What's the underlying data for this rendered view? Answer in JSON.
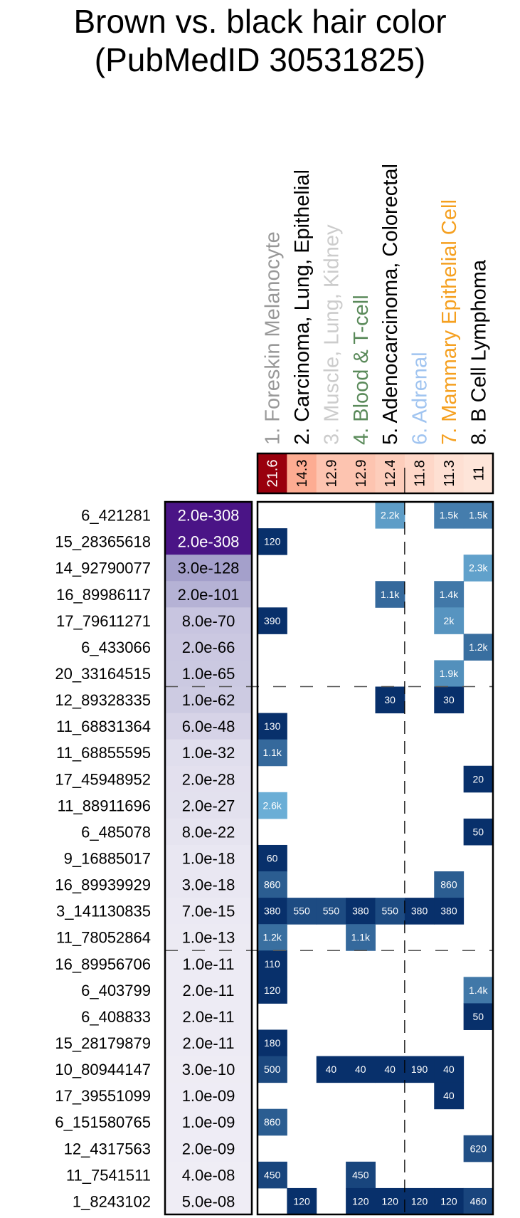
{
  "chart_data": {
    "type": "heatmap",
    "title": [
      "Brown vs. black hair color",
      "(PubMedID 30531825)"
    ],
    "columns": [
      {
        "label": "1. Foreskin Melanocyte",
        "color": "#999999",
        "enrichment": "21.6",
        "enrichment_value": 21.6
      },
      {
        "label": "2. Carcinoma, Lung, Epithelial",
        "color": "#000000",
        "enrichment": "14.3",
        "enrichment_value": 14.3
      },
      {
        "label": "3. Muscle, Lung, Kidney",
        "color": "#cccccc",
        "enrichment": "12.9",
        "enrichment_value": 12.9
      },
      {
        "label": "4. Blood & T-cell",
        "color": "#5a8a5a",
        "enrichment": "12.9",
        "enrichment_value": 12.9
      },
      {
        "label": "5. Adenocarcinoma, Colorectal",
        "color": "#000000",
        "enrichment": "12.4",
        "enrichment_value": 12.4
      },
      {
        "label": "6. Adrenal",
        "color": "#a0c4f0",
        "enrichment": "11.8",
        "enrichment_value": 11.8
      },
      {
        "label": "7. Mammary Epithelial Cell",
        "color": "#f5a020",
        "enrichment": "11.3",
        "enrichment_value": 11.3
      },
      {
        "label": "8. B Cell Lymphoma",
        "color": "#000000",
        "enrichment": "11",
        "enrichment_value": 11
      }
    ],
    "rows": [
      {
        "snp": "6_421281",
        "pvalue": "2.0e-308",
        "exp": 308,
        "cells": [
          null,
          null,
          null,
          null,
          "2.2k",
          null,
          "1.5k",
          "1.5k"
        ]
      },
      {
        "snp": "15_28365618",
        "pvalue": "2.0e-308",
        "exp": 308,
        "cells": [
          "120",
          null,
          null,
          null,
          null,
          null,
          null,
          null
        ]
      },
      {
        "snp": "14_92790077",
        "pvalue": "3.0e-128",
        "exp": 128,
        "cells": [
          null,
          null,
          null,
          null,
          null,
          null,
          null,
          "2.3k"
        ]
      },
      {
        "snp": "16_89986117",
        "pvalue": "2.0e-101",
        "exp": 101,
        "cells": [
          null,
          null,
          null,
          null,
          "1.1k",
          null,
          "1.4k",
          null
        ]
      },
      {
        "snp": "17_79611271",
        "pvalue": "8.0e-70",
        "exp": 70,
        "cells": [
          "390",
          null,
          null,
          null,
          null,
          null,
          "2k",
          null
        ]
      },
      {
        "snp": "6_433066",
        "pvalue": "2.0e-66",
        "exp": 66,
        "cells": [
          null,
          null,
          null,
          null,
          null,
          null,
          null,
          "1.2k"
        ]
      },
      {
        "snp": "20_33164515",
        "pvalue": "1.0e-65",
        "exp": 65,
        "cells": [
          null,
          null,
          null,
          null,
          null,
          null,
          "1.9k",
          null
        ]
      },
      {
        "snp": "12_89328335",
        "pvalue": "1.0e-62",
        "exp": 62,
        "cells": [
          null,
          null,
          null,
          null,
          "30",
          null,
          "30",
          null
        ]
      },
      {
        "snp": "11_68831364",
        "pvalue": "6.0e-48",
        "exp": 48,
        "cells": [
          "130",
          null,
          null,
          null,
          null,
          null,
          null,
          null
        ]
      },
      {
        "snp": "11_68855595",
        "pvalue": "1.0e-32",
        "exp": 32,
        "cells": [
          "1.1k",
          null,
          null,
          null,
          null,
          null,
          null,
          null
        ]
      },
      {
        "snp": "17_45948952",
        "pvalue": "2.0e-28",
        "exp": 28,
        "cells": [
          null,
          null,
          null,
          null,
          null,
          null,
          null,
          "20"
        ]
      },
      {
        "snp": "11_88911696",
        "pvalue": "2.0e-27",
        "exp": 27,
        "cells": [
          "2.6k",
          null,
          null,
          null,
          null,
          null,
          null,
          null
        ]
      },
      {
        "snp": "6_485078",
        "pvalue": "8.0e-22",
        "exp": 22,
        "cells": [
          null,
          null,
          null,
          null,
          null,
          null,
          null,
          "50"
        ]
      },
      {
        "snp": "9_16885017",
        "pvalue": "1.0e-18",
        "exp": 18,
        "cells": [
          "60",
          null,
          null,
          null,
          null,
          null,
          null,
          null
        ]
      },
      {
        "snp": "16_89939929",
        "pvalue": "3.0e-18",
        "exp": 18,
        "cells": [
          "860",
          null,
          null,
          null,
          null,
          null,
          "860",
          null
        ]
      },
      {
        "snp": "3_141130835",
        "pvalue": "7.0e-15",
        "exp": 15,
        "cells": [
          "380",
          "550",
          "550",
          "380",
          "550",
          "380",
          "380",
          null
        ]
      },
      {
        "snp": "11_78052864",
        "pvalue": "1.0e-13",
        "exp": 13,
        "cells": [
          "1.2k",
          null,
          null,
          "1.1k",
          null,
          null,
          null,
          null
        ]
      },
      {
        "snp": "16_89956706",
        "pvalue": "1.0e-11",
        "exp": 11,
        "cells": [
          "110",
          null,
          null,
          null,
          null,
          null,
          null,
          null
        ]
      },
      {
        "snp": "6_403799",
        "pvalue": "2.0e-11",
        "exp": 11,
        "cells": [
          "120",
          null,
          null,
          null,
          null,
          null,
          null,
          "1.4k"
        ]
      },
      {
        "snp": "6_408833",
        "pvalue": "2.0e-11",
        "exp": 11,
        "cells": [
          null,
          null,
          null,
          null,
          null,
          null,
          null,
          "50"
        ]
      },
      {
        "snp": "15_28179879",
        "pvalue": "2.0e-11",
        "exp": 11,
        "cells": [
          "180",
          null,
          null,
          null,
          null,
          null,
          null,
          null
        ]
      },
      {
        "snp": "10_80944147",
        "pvalue": "3.0e-10",
        "exp": 10,
        "cells": [
          "500",
          null,
          "40",
          "40",
          "40",
          "190",
          "40",
          null
        ]
      },
      {
        "snp": "17_39551099",
        "pvalue": "1.0e-09",
        "exp": 9,
        "cells": [
          null,
          null,
          null,
          null,
          null,
          null,
          "40",
          null
        ]
      },
      {
        "snp": "6_151580765",
        "pvalue": "1.0e-09",
        "exp": 9,
        "cells": [
          "860",
          null,
          null,
          null,
          null,
          null,
          null,
          null
        ]
      },
      {
        "snp": "12_4317563",
        "pvalue": "2.0e-09",
        "exp": 9,
        "cells": [
          null,
          null,
          null,
          null,
          null,
          null,
          null,
          "620"
        ]
      },
      {
        "snp": "11_7541511",
        "pvalue": "4.0e-08",
        "exp": 8,
        "cells": [
          "450",
          null,
          null,
          "450",
          null,
          null,
          null,
          null
        ]
      },
      {
        "snp": "1_8243102",
        "pvalue": "5.0e-08",
        "exp": 8,
        "cells": [
          null,
          "120",
          null,
          "120",
          "120",
          "120",
          "120",
          "460"
        ]
      }
    ],
    "row_separators_after": [
      7,
      17
    ],
    "column_separator_after": 5,
    "colors": {
      "enrichment_max": "#99000d",
      "enrichment_min": "#fee5d9",
      "pvalue_max": "#4a1486",
      "pvalue_min": "#efedf5",
      "distance_near": "#08306b",
      "distance_far": "#6baed6"
    }
  }
}
